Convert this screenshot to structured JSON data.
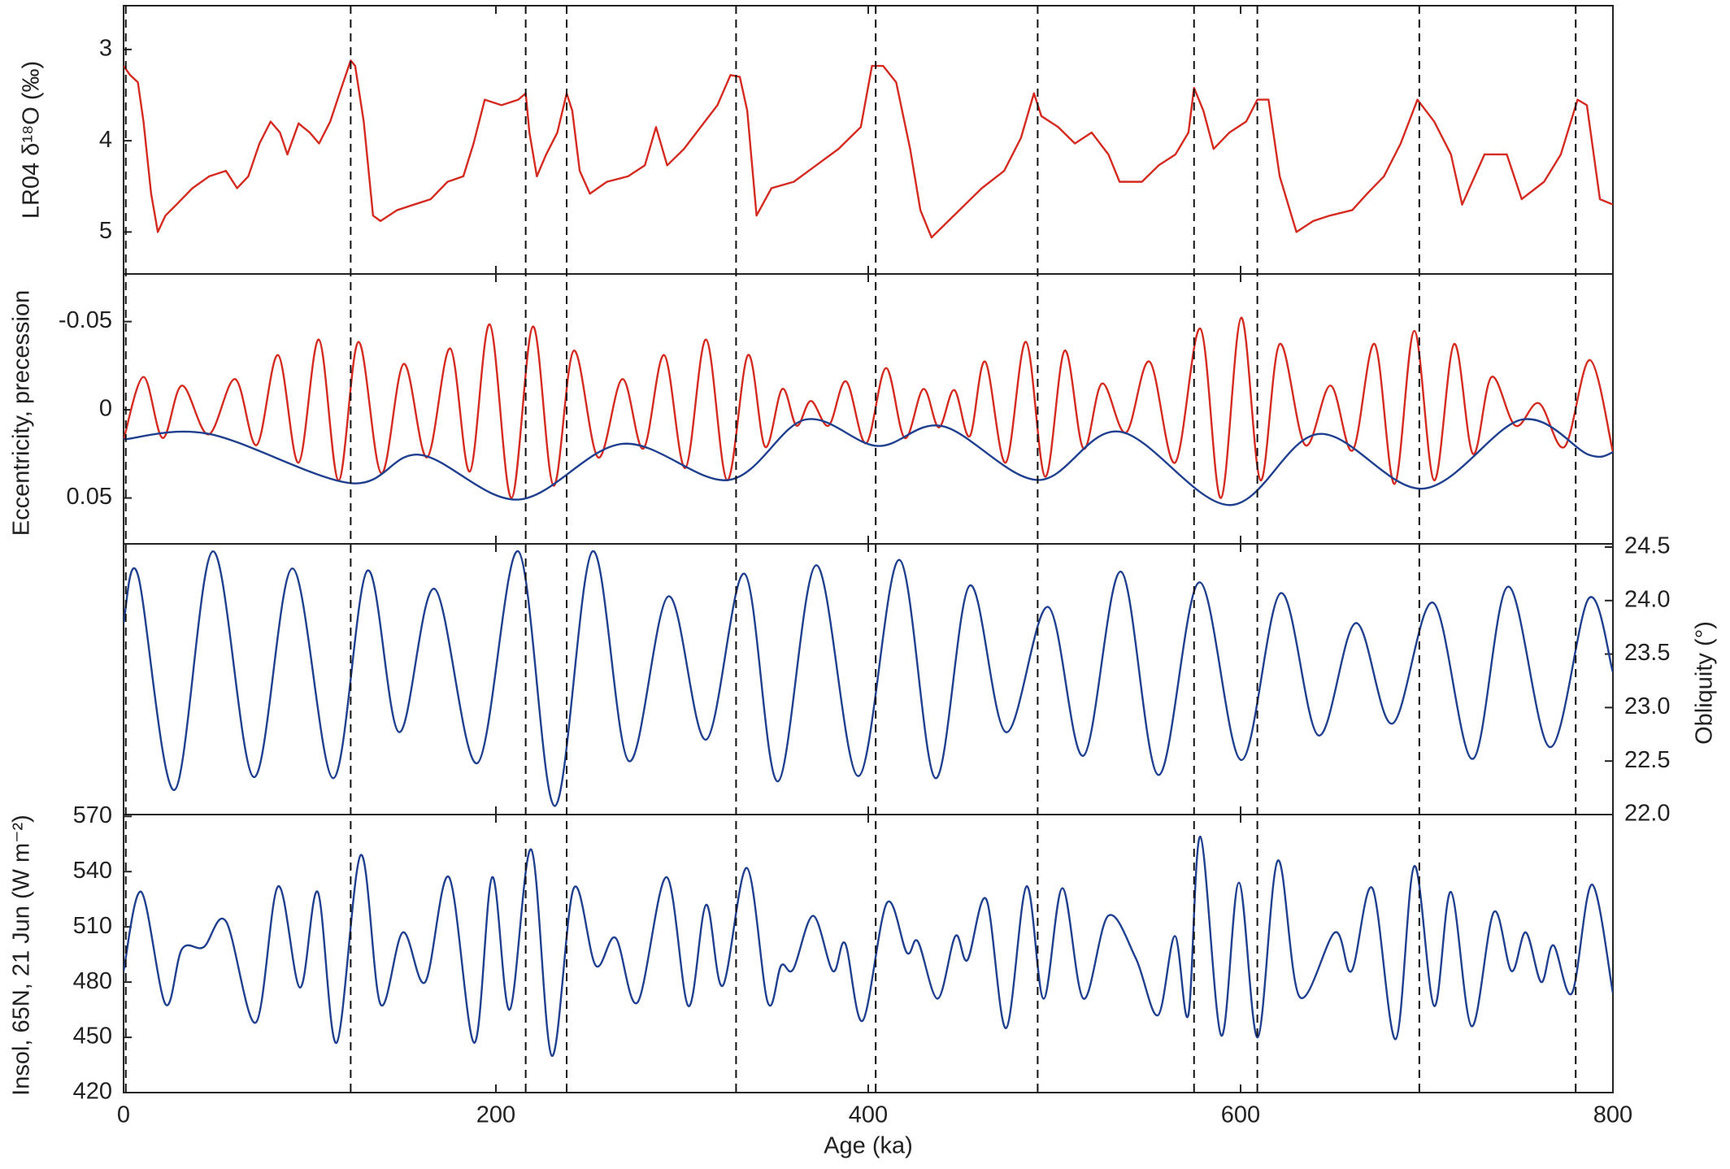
{
  "x_axis": {
    "label": "Age (ka)",
    "xlim": [
      0,
      800
    ],
    "xticks": [
      0,
      200,
      400,
      600,
      800
    ],
    "markers": [
      1.2,
      122,
      216,
      238,
      329,
      404,
      491,
      575,
      609,
      696,
      780
    ],
    "marker_style": "dashed"
  },
  "chart_data": [
    {
      "type": "line",
      "y_label": "LR04 δ¹⁸O (‰)",
      "ylim": [
        2.52,
        5.46
      ],
      "y_inverted": true,
      "yticks": [
        3,
        4,
        5
      ],
      "series": [
        {
          "color": "#d42a20",
          "smooth": false,
          "x": [
            0,
            3.5,
            7.7,
            10.7,
            14.8,
            18.4,
            22.5,
            28.4,
            37,
            46,
            55,
            61,
            67,
            73,
            79,
            84,
            88,
            94,
            100,
            105,
            111,
            117,
            122,
            124.4,
            129,
            134,
            138,
            147,
            156,
            165,
            174,
            182.5,
            188,
            194,
            203,
            212,
            216,
            218,
            222,
            227,
            233,
            238,
            241,
            245,
            250.5,
            259.6,
            271,
            280,
            286,
            292,
            301,
            310,
            319,
            326,
            331,
            335,
            340,
            348,
            360,
            372,
            384,
            396,
            402,
            408,
            415,
            422.5,
            428,
            434,
            443,
            452,
            461,
            473,
            482,
            489,
            493,
            502,
            511,
            520,
            529,
            535,
            547,
            556,
            565,
            572,
            575,
            580,
            585.5,
            594,
            603,
            609,
            615,
            621,
            630,
            639,
            648,
            660,
            668,
            677,
            686,
            695,
            704,
            713,
            719,
            731,
            743,
            751,
            763,
            772,
            781,
            786,
            793,
            800
          ],
          "values": [
            3.18,
            3.28,
            3.36,
            3.79,
            4.58,
            5.0,
            4.82,
            4.7,
            4.52,
            4.39,
            4.33,
            4.52,
            4.39,
            4.03,
            3.79,
            3.91,
            4.15,
            3.81,
            3.91,
            4.03,
            3.79,
            3.42,
            3.12,
            3.18,
            3.79,
            4.82,
            4.88,
            4.76,
            4.7,
            4.64,
            4.45,
            4.39,
            4.03,
            3.55,
            3.61,
            3.55,
            3.48,
            3.91,
            4.39,
            4.15,
            3.91,
            3.48,
            3.67,
            4.33,
            4.58,
            4.45,
            4.39,
            4.27,
            3.85,
            4.27,
            4.09,
            3.85,
            3.61,
            3.28,
            3.3,
            3.67,
            4.82,
            4.52,
            4.45,
            4.27,
            4.09,
            3.85,
            3.18,
            3.18,
            3.36,
            4.09,
            4.76,
            5.06,
            4.88,
            4.7,
            4.52,
            4.33,
            3.97,
            3.48,
            3.73,
            3.85,
            4.03,
            3.91,
            4.15,
            4.45,
            4.45,
            4.27,
            4.15,
            3.91,
            3.42,
            3.67,
            4.09,
            3.91,
            3.79,
            3.55,
            3.55,
            4.39,
            5.0,
            4.88,
            4.82,
            4.76,
            4.58,
            4.39,
            4.03,
            3.55,
            3.79,
            4.15,
            4.7,
            4.15,
            4.15,
            4.64,
            4.45,
            4.15,
            3.55,
            3.61,
            4.64,
            4.7
          ]
        }
      ]
    },
    {
      "type": "line",
      "y_label": "Eccentricity, precession",
      "ylim": [
        -0.077,
        0.076
      ],
      "y_inverted": true,
      "yticks": [
        -0.05,
        0,
        0.05
      ],
      "series": [
        {
          "color": "#d42a20",
          "smooth": true,
          "x": [
            0,
            10.7,
            21,
            31.4,
            45.6,
            59.9,
            71.5,
            83,
            94,
            104.9,
            115.5,
            126.2,
            138.4,
            150.5,
            163,
            175.4,
            186,
            196.7,
            208.3,
            219.9,
            230.9,
            241.8,
            254.9,
            267.9,
            279.2,
            290.4,
            301.7,
            312.9,
            324.2,
            335.4,
            344.6,
            353.8,
            361.5,
            369.2,
            378.7,
            388.1,
            398.8,
            409.5,
            419.6,
            429.6,
            437.9,
            446.2,
            454.5,
            462.8,
            473.8,
            484.7,
            495.1,
            505.5,
            515.6,
            525.6,
            538.4,
            551.1,
            564.8,
            578.4,
            589.4,
            600.3,
            610.7,
            621,
            634.7,
            648.3,
            660.2,
            672,
            682.7,
            693.3,
            704,
            714.7,
            724.8,
            734.8,
            747.6,
            760.3,
            774,
            787.6,
            800
          ],
          "values": [
            0.017,
            -0.0186,
            0.016,
            -0.0137,
            0.014,
            -0.0174,
            0.02,
            -0.031,
            0.03,
            -0.0398,
            0.04,
            -0.0385,
            0.036,
            -0.026,
            0.027,
            -0.0348,
            0.035,
            -0.0484,
            0.05,
            -0.0472,
            0.043,
            -0.0335,
            0.027,
            -0.0174,
            0.022,
            -0.031,
            0.033,
            -0.0398,
            0.04,
            -0.031,
            0.021,
            -0.0118,
            0.009,
            -0.005,
            0.009,
            -0.0161,
            0.019,
            -0.0236,
            0.016,
            -0.0118,
            0.01,
            -0.0112,
            0.015,
            -0.0273,
            0.03,
            -0.0385,
            0.038,
            -0.0335,
            0.022,
            -0.0149,
            0.013,
            -0.0273,
            0.03,
            -0.046,
            0.05,
            -0.0522,
            0.04,
            -0.0373,
            0.02,
            -0.0137,
            0.023,
            -0.0373,
            0.042,
            -0.0447,
            0.04,
            -0.0373,
            0.025,
            -0.0186,
            0.009,
            -0.0037,
            0.021,
            -0.0282,
            0.024
          ]
        },
        {
          "color": "#1f3f8f",
          "smooth": true,
          "x": [
            0,
            46,
            122,
            159,
            212,
            268,
            325,
            366,
            405,
            440,
            491,
            535,
            594,
            642,
            698,
            751,
            787,
            800
          ],
          "values": [
            0.0168,
            0.0137,
            0.0416,
            0.0255,
            0.0509,
            0.0193,
            0.0398,
            0.0056,
            0.0205,
            0.0093,
            0.0398,
            0.0124,
            0.054,
            0.0137,
            0.0447,
            0.0056,
            0.0255,
            0.0242
          ]
        }
      ]
    },
    {
      "type": "line",
      "y2_label": "Obliquity (°)",
      "y2lim": [
        22,
        24.53
      ],
      "y2ticks": [
        {
          "value": 22,
          "label": "22.0"
        },
        22.5,
        {
          "value": 23,
          "label": "23.0"
        },
        23.5,
        {
          "value": 24,
          "label": "24.0"
        },
        24.5
      ],
      "series": [
        {
          "color": "#1f3f8f",
          "smooth": true,
          "axis": "y2",
          "x": [
            0,
            7.7,
            27.3,
            48,
            70,
            90.7,
            112.6,
            131,
            148,
            167,
            190,
            212,
            231.6,
            251.9,
            271.4,
            292.7,
            312.9,
            333.6,
            351.4,
            372.1,
            394.7,
            416.6,
            436.1,
            454.5,
            474,
            496.6,
            515.6,
            535.7,
            555.9,
            577.8,
            600.3,
            621.6,
            641.8,
            661.9,
            681.5,
            703.4,
            724.7,
            743.7,
            766.2,
            787,
            800
          ],
          "values": [
            23.79,
            24.24,
            22.23,
            24.46,
            22.35,
            24.3,
            22.34,
            24.28,
            22.77,
            24.11,
            22.48,
            24.46,
            22.08,
            24.46,
            22.5,
            24.04,
            22.7,
            24.25,
            22.31,
            24.33,
            22.36,
            24.38,
            22.34,
            24.14,
            22.77,
            23.94,
            22.55,
            24.27,
            22.37,
            24.17,
            22.51,
            24.07,
            22.74,
            23.79,
            22.85,
            23.98,
            22.52,
            24.13,
            22.63,
            24.02,
            23.33
          ]
        }
      ]
    },
    {
      "type": "line",
      "y_label": "Insol, 65N, 21 Jun (W m⁻²)",
      "ylim": [
        420,
        571
      ],
      "yticks": [
        420,
        450,
        480,
        510,
        540,
        570
      ],
      "series": [
        {
          "color": "#1f3f8f",
          "smooth": true,
          "x": [
            0,
            9.5,
            22.5,
            31.4,
            43,
            55,
            71,
            83,
            94.8,
            104.3,
            114.4,
            127.4,
            138,
            150,
            162,
            174.8,
            188.4,
            198,
            207.4,
            219,
            230,
            241.8,
            253.6,
            264.3,
            276.1,
            291.6,
            303.4,
            312.9,
            321.8,
            334.8,
            346,
            353.2,
            359.7,
            370.4,
            381,
            387.6,
            397,
            410,
            420.7,
            426.7,
            437.3,
            446.8,
            453.3,
            463.4,
            474,
            485,
            494.2,
            504.3,
            515.6,
            528.9,
            543.7,
            555.6,
            564.7,
            571.9,
            578.4,
            589.6,
            599.1,
            609.2,
            620,
            631.7,
            650.7,
            659.6,
            670.8,
            683.3,
            693.3,
            704,
            713,
            724.1,
            736,
            745.5,
            753.2,
            761.5,
            768,
            778,
            788.7,
            800
          ],
          "values": [
            486,
            529,
            468,
            498,
            499,
            513,
            458,
            532,
            477,
            529,
            447,
            549,
            468,
            507,
            480,
            537,
            447,
            537,
            465,
            552,
            440,
            531,
            489,
            504,
            469,
            537,
            467,
            522,
            478,
            542,
            469,
            489,
            487,
            516,
            486,
            501,
            459,
            523,
            496,
            502,
            471,
            505,
            492,
            525,
            455,
            532,
            471,
            531,
            471,
            516,
            493,
            462,
            505,
            462,
            559,
            451,
            534,
            450,
            546,
            472,
            507,
            486,
            531,
            449,
            543,
            467,
            529,
            456,
            518,
            486,
            507,
            480,
            500,
            474,
            533,
            474
          ]
        }
      ]
    }
  ]
}
